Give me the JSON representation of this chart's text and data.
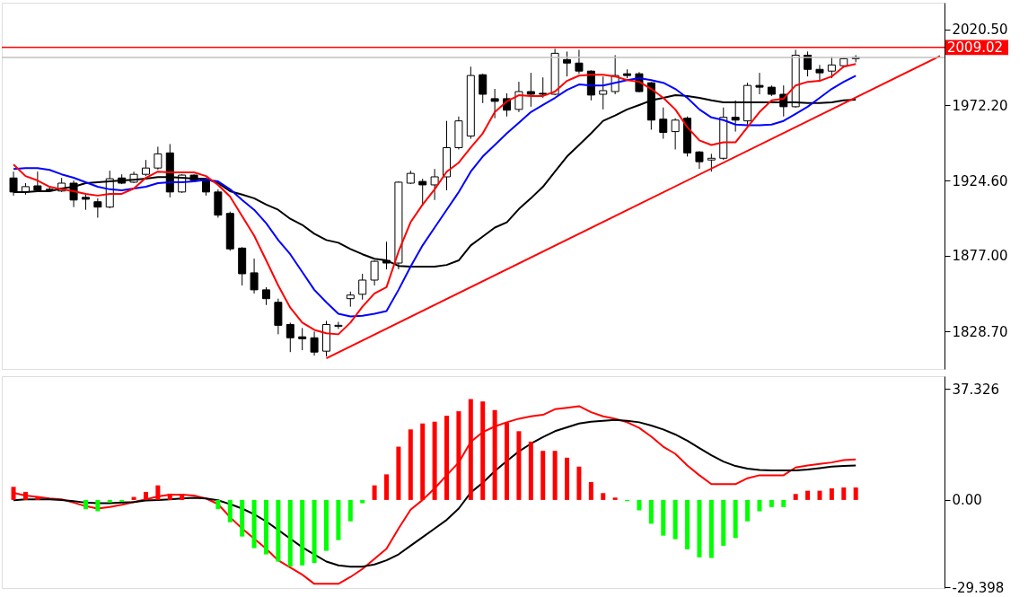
{
  "chart_data": [
    {
      "type": "candlestick",
      "categories": [
        null,
        null,
        null,
        null,
        null,
        null,
        null,
        null,
        null,
        null,
        null,
        null,
        null,
        null,
        null,
        null,
        null,
        null,
        null,
        null,
        null,
        null,
        null,
        null,
        null,
        null,
        null,
        null,
        null,
        null,
        null,
        null,
        null,
        null,
        null,
        null,
        null,
        null,
        null,
        null,
        null,
        null,
        null,
        null,
        null,
        null,
        null,
        null,
        null,
        null,
        null,
        null,
        null,
        null,
        null,
        null,
        null,
        null,
        null,
        null,
        null,
        null,
        null,
        null,
        null,
        null,
        null,
        null,
        null,
        null,
        null,
        null,
        null,
        null,
        null,
        null,
        null,
        null
      ],
      "ohlc": [
        [
          1926.2,
          1930.2,
          1915.0,
          1917.3
        ],
        [
          1917.3,
          1922.9,
          1915.6,
          1920.7
        ],
        [
          1921.2,
          1930.2,
          1917.3,
          1918.4
        ],
        [
          1919.0,
          1920.1,
          1917.3,
          1918.7
        ],
        [
          1917.9,
          1926.2,
          1917.3,
          1922.9
        ],
        [
          1922.9,
          1924.6,
          1907.7,
          1912.2
        ],
        [
          1913.9,
          1915.6,
          1906.0,
          1912.7
        ],
        [
          1911.1,
          1913.3,
          1901.0,
          1907.7
        ],
        [
          1907.7,
          1930.8,
          1907.0,
          1925.7
        ],
        [
          1926.2,
          1928.5,
          1922.3,
          1922.9
        ],
        [
          1923.5,
          1930.2,
          1922.9,
          1928.5
        ],
        [
          1928.5,
          1937.6,
          1927.4,
          1932.5
        ],
        [
          1932.5,
          1946.0,
          1931.4,
          1941.5
        ],
        [
          1942.1,
          1947.7,
          1913.9,
          1917.3
        ],
        [
          1917.3,
          1928.5,
          1916.7,
          1928.0
        ],
        [
          1928.0,
          1928.5,
          1924.0,
          1924.6
        ],
        [
          1925.1,
          1926.2,
          1915.0,
          1917.3
        ],
        [
          1917.3,
          1919.0,
          1901.0,
          1902.6
        ],
        [
          1903.7,
          1904.9,
          1880.0,
          1881.2
        ],
        [
          1881.7,
          1882.3,
          1858.0,
          1865.4
        ],
        [
          1866.0,
          1875.0,
          1852.9,
          1855.2
        ],
        [
          1855.2,
          1856.9,
          1845.6,
          1849.6
        ],
        [
          1847.3,
          1849.6,
          1827.0,
          1832.7
        ],
        [
          1833.2,
          1834.4,
          1815.7,
          1824.8
        ],
        [
          1825.4,
          1831.0,
          1816.9,
          1824.2
        ],
        [
          1824.8,
          1828.7,
          1813.5,
          1815.7
        ],
        [
          1816.3,
          1835.5,
          1812.9,
          1833.2
        ],
        [
          1832.1,
          1834.9,
          1830.4,
          1832.7
        ],
        [
          1849.6,
          1854.1,
          1844.5,
          1851.9
        ],
        [
          1852.4,
          1865.4,
          1849.0,
          1861.4
        ],
        [
          1861.4,
          1873.9,
          1858.0,
          1873.3
        ],
        [
          1873.9,
          1885.7,
          1868.2,
          1872.2
        ],
        [
          1872.2,
          1924.0,
          1868.2,
          1923.5
        ],
        [
          1922.9,
          1930.8,
          1922.3,
          1929.1
        ],
        [
          1924.0,
          1925.7,
          1908.8,
          1921.8
        ],
        [
          1921.8,
          1931.9,
          1912.2,
          1926.9
        ],
        [
          1926.9,
          1962.4,
          1918.4,
          1945.4
        ],
        [
          1945.4,
          1965.2,
          1944.3,
          1962.4
        ],
        [
          1952.8,
          1996.8,
          1951.1,
          1991.2
        ],
        [
          1991.7,
          1992.3,
          1973.7,
          1979.3
        ],
        [
          1976.5,
          1982.7,
          1964.1,
          1974.8
        ],
        [
          1976.5,
          1979.9,
          1965.2,
          1969.2
        ],
        [
          1969.7,
          1987.2,
          1968.0,
          1981.0
        ],
        [
          1981.0,
          1992.9,
          1971.4,
          1979.3
        ],
        [
          1979.9,
          1990.0,
          1977.1,
          1979.3
        ],
        [
          1979.3,
          2008.1,
          1978.7,
          2005.3
        ],
        [
          2001.3,
          2006.4,
          1990.6,
          1999.1
        ],
        [
          1999.1,
          2007.5,
          1992.3,
          1994.0
        ],
        [
          1994.0,
          1994.5,
          1975.4,
          1978.8
        ],
        [
          1979.3,
          1990.6,
          1969.7,
          1981.6
        ],
        [
          1981.0,
          2004.1,
          1979.3,
          1991.2
        ],
        [
          1992.3,
          1995.1,
          1989.5,
          1991.2
        ],
        [
          1992.3,
          1993.4,
          1980.5,
          1981.0
        ],
        [
          1986.6,
          1987.0,
          1956.8,
          1962.9
        ],
        [
          1963.5,
          1970.9,
          1951.1,
          1955.1
        ],
        [
          1955.6,
          1964.1,
          1944.3,
          1962.9
        ],
        [
          1964.1,
          1965.2,
          1939.8,
          1942.1
        ],
        [
          1942.7,
          1943.2,
          1932.0,
          1936.5
        ],
        [
          1937.6,
          1941.5,
          1930.2,
          1938.7
        ],
        [
          1938.7,
          1970.9,
          1937.6,
          1964.7
        ],
        [
          1964.7,
          1975.4,
          1955.6,
          1962.9
        ],
        [
          1962.4,
          1986.6,
          1960.1,
          1984.9
        ],
        [
          1984.9,
          1992.9,
          1979.3,
          1983.8
        ],
        [
          1983.8,
          1984.9,
          1978.2,
          1979.3
        ],
        [
          1979.3,
          1984.9,
          1965.2,
          1971.4
        ],
        [
          1971.4,
          2007.5,
          1970.8,
          2004.1
        ],
        [
          2004.1,
          2006.4,
          1990.6,
          1995.1
        ],
        [
          1995.1,
          1997.9,
          1987.2,
          1992.9
        ],
        [
          1994.0,
          2003.0,
          1989.5,
          1997.9
        ],
        [
          1997.4,
          2002.4,
          1996.8,
          2001.9
        ],
        [
          2001.9,
          2004.1,
          1999.6,
          2002.7
        ],
        null,
        null,
        null,
        null,
        null,
        null,
        null
      ],
      "series": [
        {
          "type": "line",
          "color": "#000000",
          "values": [
            1917.2,
            1917.2,
            1917.8,
            1917.8,
            1919.5,
            1920.6,
            1922.9,
            1923.5,
            1924.0,
            1924.6,
            1925.1,
            1925.7,
            1926.8,
            1926.8,
            1926.3,
            1925.7,
            1925.7,
            1922.9,
            1917.8,
            1915.6,
            1913.3,
            1909.3,
            1906.0,
            1900.3,
            1896.4,
            1890.8,
            1886.8,
            1885.1,
            1881.1,
            1877.8,
            1874.9,
            1873.9,
            1870.4,
            1869.9,
            1869.9,
            1869.9,
            1871.0,
            1873.9,
            1883.4,
            1889.0,
            1894.7,
            1898.1,
            1906.5,
            1913.3,
            1920.6,
            1930.2,
            1939.8,
            1947.1,
            1954.5,
            1962.4,
            1965.8,
            1969.7,
            1972.5,
            1975.4,
            1977.0,
            1978.7,
            1978.2,
            1977.0,
            1975.4,
            1974.2,
            1974.2,
            1974.2,
            1974.2,
            1974.2,
            1974.2,
            1974.2,
            1973.7,
            1973.7,
            1974.2,
            1975.4,
            1975.9,
            null,
            null,
            null,
            null,
            null,
            null,
            null
          ]
        },
        {
          "type": "line",
          "color": "#0000ff",
          "values": [
            1931.9,
            1932.5,
            1932.5,
            1931.3,
            1928.5,
            1926.3,
            1923.5,
            1920.6,
            1919.0,
            1918.4,
            1919.5,
            1920.6,
            1922.9,
            1923.5,
            1923.5,
            1924.0,
            1925.1,
            1924.0,
            1919.0,
            1912.2,
            1906.0,
            1897.5,
            1886.8,
            1877.8,
            1866.5,
            1855.2,
            1847.3,
            1840.0,
            1838.3,
            1838.8,
            1840.0,
            1841.7,
            1855.2,
            1869.9,
            1883.4,
            1894.7,
            1906.0,
            1917.2,
            1930.2,
            1939.8,
            1947.1,
            1954.5,
            1961.2,
            1968.0,
            1972.5,
            1977.0,
            1982.1,
            1985.5,
            1984.9,
            1984.9,
            1986.6,
            1988.3,
            1989.5,
            1988.3,
            1986.6,
            1982.7,
            1977.0,
            1969.7,
            1964.6,
            1962.9,
            1960.1,
            1959.6,
            1959.6,
            1960.1,
            1962.4,
            1966.9,
            1971.4,
            1977.0,
            1982.7,
            1987.2,
            1991.1,
            null,
            null,
            null,
            null,
            null,
            null,
            null
          ]
        },
        {
          "type": "line",
          "color": "#ff0000",
          "values": [
            1934.7,
            1927.4,
            1924.6,
            1920.6,
            1919.0,
            1917.8,
            1916.1,
            1915.0,
            1916.1,
            1916.1,
            1919.5,
            1926.3,
            1930.2,
            1929.7,
            1929.7,
            1929.7,
            1927.4,
            1921.8,
            1914.4,
            1902.0,
            1889.6,
            1873.9,
            1858.0,
            1843.9,
            1834.4,
            1829.8,
            1827.6,
            1827.0,
            1834.4,
            1844.5,
            1852.9,
            1856.9,
            1879.5,
            1898.1,
            1909.3,
            1919.0,
            1930.2,
            1935.9,
            1945.5,
            1954.5,
            1968.0,
            1974.8,
            1978.7,
            1978.2,
            1978.2,
            1981.0,
            1987.8,
            1991.1,
            1991.7,
            1991.7,
            1990.6,
            1988.3,
            1987.2,
            1982.7,
            1977.0,
            1969.7,
            1958.4,
            1950.0,
            1947.1,
            1948.8,
            1948.8,
            1958.4,
            1968.0,
            1975.4,
            1976.5,
            1984.9,
            1987.2,
            1987.8,
            1990.6,
            1996.8,
            1998.5,
            null,
            null,
            null,
            null,
            null,
            null,
            null
          ]
        },
        {
          "type": "line",
          "color": "#ff0000",
          "values": [
            null,
            null,
            null,
            null,
            null,
            null,
            null,
            null,
            null,
            null,
            null,
            null,
            null,
            null,
            null,
            null,
            null,
            null,
            null,
            null,
            null,
            null,
            null,
            null,
            null,
            null,
            1811.8,
            null,
            null,
            null,
            null,
            null,
            null,
            null,
            null,
            null,
            null,
            null,
            null,
            null,
            null,
            null,
            null,
            null,
            null,
            null,
            null,
            null,
            null,
            null,
            null,
            null,
            null,
            null,
            null,
            null,
            null,
            null,
            null,
            null,
            null,
            null,
            null,
            null,
            null,
            null,
            null,
            null,
            null,
            null,
            null,
            null,
            null,
            null,
            null,
            null,
            null,
            2003.6
          ]
        }
      ],
      "ref_lines": [
        {
          "axis": "y",
          "value": 2009.02,
          "label": "2009.02",
          "color": "#ff0000"
        },
        {
          "axis": "y",
          "value": 2002.7,
          "label": null,
          "color": "#c0c0c0"
        }
      ],
      "ylim": [
        1805.0,
        2037.4
      ],
      "yticks": [
        {
          "value": 2020.5,
          "label": "2020.50"
        },
        {
          "value": 1972.2,
          "label": "1972.20"
        },
        {
          "value": 1924.6,
          "label": "1924.60"
        },
        {
          "value": 1877.0,
          "label": "1877.00"
        },
        {
          "value": 1828.7,
          "label": "1828.70"
        }
      ],
      "tick_labels": "y"
    },
    {
      "type": "bar",
      "categories": [
        null,
        null,
        null,
        null,
        null,
        null,
        null,
        null,
        null,
        null,
        null,
        null,
        null,
        null,
        null,
        null,
        null,
        null,
        null,
        null,
        null,
        null,
        null,
        null,
        null,
        null,
        null,
        null,
        null,
        null,
        null,
        null,
        null,
        null,
        null,
        null,
        null,
        null,
        null,
        null,
        null,
        null,
        null,
        null,
        null,
        null,
        null,
        null,
        null,
        null,
        null,
        null,
        null,
        null,
        null,
        null,
        null,
        null,
        null,
        null,
        null,
        null,
        null,
        null,
        null,
        null,
        null,
        null,
        null,
        null,
        null,
        null,
        null,
        null,
        null,
        null,
        null,
        null
      ],
      "series": [
        {
          "type": "bar",
          "color": "#ff0000",
          "values": [
            4.4,
            2.7,
            1.0,
            null,
            null,
            null,
            null,
            null,
            null,
            null,
            1.0,
            2.7,
            4.9,
            2.1,
            2.0,
            null,
            null,
            null,
            null,
            null,
            null,
            null,
            null,
            null,
            null,
            null,
            null,
            null,
            null,
            null,
            4.9,
            8.6,
            17.9,
            23.7,
            25.7,
            26.3,
            28.3,
            29.8,
            33.9,
            33.1,
            30.2,
            25.9,
            23.1,
            19.6,
            16.5,
            16.5,
            14.2,
            11.2,
            6.0,
            2.3,
            0.8,
            null,
            null,
            null,
            null,
            null,
            null,
            null,
            null,
            null,
            null,
            null,
            null,
            null,
            null,
            2.0,
            3.1,
            3.1,
            3.9,
            4.2,
            4.2,
            null,
            null,
            null,
            null,
            null,
            null,
            null
          ]
        },
        {
          "type": "bar",
          "color": "#00ff00",
          "values": [
            null,
            null,
            null,
            null,
            null,
            null,
            -3.1,
            -3.8,
            -0.9,
            -0.6,
            null,
            null,
            null,
            null,
            null,
            null,
            null,
            -3.1,
            -7.5,
            -12.3,
            -16.2,
            -18.3,
            -20.7,
            -22.4,
            -22.0,
            -21.2,
            -17.1,
            -13.5,
            -7.2,
            -1.1,
            null,
            null,
            null,
            null,
            null,
            null,
            null,
            null,
            null,
            null,
            null,
            null,
            null,
            null,
            null,
            null,
            null,
            null,
            null,
            null,
            null,
            -0.4,
            -3.5,
            -8.0,
            -12.0,
            -13.2,
            -16.6,
            -19.3,
            -19.5,
            -15.4,
            -12.8,
            -7.2,
            -3.8,
            -2.4,
            -2.4,
            null,
            null,
            null,
            null,
            null,
            null,
            null,
            null,
            null,
            null,
            null,
            null,
            null
          ]
        },
        {
          "type": "line",
          "color": "#ff0000",
          "values": [
            2.4,
            1.5,
            1.0,
            0.5,
            0.2,
            -0.9,
            -2.1,
            -2.9,
            -2.4,
            -1.6,
            -0.7,
            0.2,
            1.2,
            1.8,
            1.8,
            1.5,
            0.5,
            -1.4,
            -5.8,
            -9.6,
            -13.0,
            -16.4,
            -20.3,
            -22.7,
            -25.1,
            -28.2,
            -28.2,
            -28.2,
            -25.9,
            -23.2,
            -19.8,
            -16.4,
            -9.6,
            -3.3,
            0.0,
            3.9,
            8.3,
            12.6,
            19.5,
            22.8,
            24.7,
            26.1,
            27.3,
            28.1,
            28.6,
            30.5,
            31.0,
            31.5,
            29.5,
            28.1,
            27.3,
            26.1,
            24.2,
            21.3,
            17.9,
            15.5,
            11.6,
            8.3,
            5.3,
            5.3,
            5.3,
            7.3,
            8.3,
            8.3,
            8.3,
            10.9,
            11.6,
            12.1,
            12.6,
            13.4,
            13.6,
            null,
            null,
            null,
            null,
            null,
            null,
            null
          ]
        },
        {
          "type": "line",
          "color": "#000000",
          "values": [
            -0.1,
            0.2,
            0.2,
            0.2,
            0.0,
            -0.4,
            -0.9,
            -1.1,
            -1.1,
            -0.9,
            -0.7,
            -0.2,
            0.0,
            0.2,
            0.5,
            0.7,
            0.5,
            -0.1,
            -1.4,
            -2.9,
            -4.8,
            -7.2,
            -10.1,
            -13.0,
            -15.9,
            -18.3,
            -20.7,
            -22.0,
            -22.4,
            -22.4,
            -21.7,
            -20.3,
            -18.3,
            -15.4,
            -12.5,
            -9.6,
            -6.7,
            -2.9,
            2.5,
            5.8,
            9.7,
            13.1,
            16.3,
            18.9,
            21.1,
            23.1,
            24.4,
            25.7,
            26.3,
            26.6,
            26.9,
            26.6,
            26.1,
            25.0,
            23.7,
            22.0,
            19.9,
            17.4,
            15.0,
            12.9,
            11.4,
            10.5,
            10.1,
            9.9,
            9.9,
            9.9,
            10.2,
            10.7,
            11.2,
            11.4,
            11.6,
            null,
            null,
            null,
            null,
            null,
            null,
            null
          ]
        }
      ],
      "ylim": [
        -29.6,
        41.6
      ],
      "yticks": [
        37.326,
        {
          "value": 0,
          "label": "0.00"
        },
        -29.398
      ],
      "tick_labels": "y"
    }
  ]
}
